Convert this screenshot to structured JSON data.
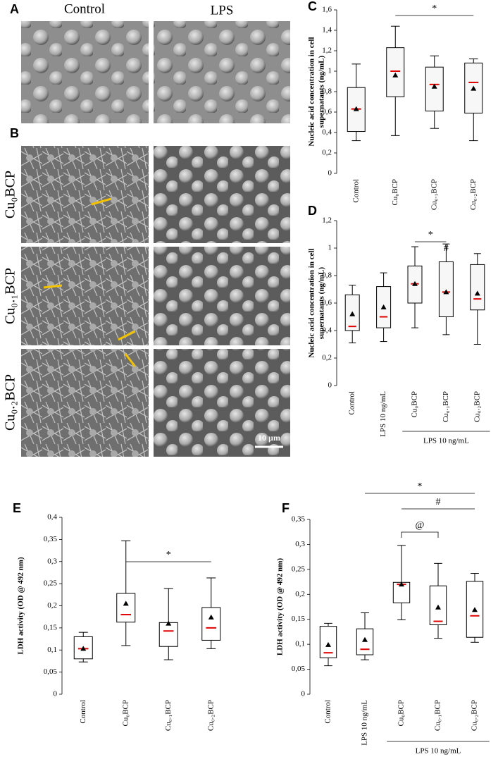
{
  "micrographs": {
    "panel_a": "A",
    "panel_b": "B",
    "columns": [
      "Control",
      "LPS"
    ],
    "rows": [
      "Cu₀BCP",
      "Cu₀.₁BCP",
      "Cu₀.₂BCP"
    ],
    "scale_bar": "10 µm"
  },
  "chart_data": [
    {
      "type": "box",
      "panel": "C",
      "y_label": [
        "Nucleic acid concentration in cell",
        "supernatants (ng/mL)"
      ],
      "categories": [
        "Control",
        "Cu₀BCP",
        "Cu₀.₁BCP",
        "Cu₀.₂BCP"
      ],
      "boxes": {
        "min": [
          0.32,
          0.37,
          0.44,
          0.32
        ],
        "q1": [
          0.41,
          0.75,
          0.61,
          0.59
        ],
        "median": [
          0.63,
          1.0,
          0.87,
          0.89
        ],
        "q3": [
          0.84,
          1.23,
          1.04,
          1.08
        ],
        "max": [
          1.07,
          1.44,
          1.15,
          1.12
        ],
        "mean": [
          0.63,
          0.96,
          0.85,
          0.83
        ]
      },
      "median_color": "#e00000",
      "mean_color": "#000000",
      "box_fill": "#f7f7f7",
      "ylim": [
        0,
        1.6
      ],
      "yticks": [
        0,
        {
          "value": 0.2,
          "label": "0,2"
        },
        {
          "value": 0.4,
          "label": "0,4"
        },
        {
          "value": 0.6,
          "label": "0,6"
        },
        {
          "value": 0.8,
          "label": "0,8"
        },
        1,
        {
          "value": 1.2,
          "label": "1,2"
        },
        {
          "value": 1.4,
          "label": "1,4"
        },
        {
          "value": 1.6,
          "label": "1,6"
        }
      ],
      "annotations": [
        {
          "text": "*",
          "from": 1,
          "to": 3
        }
      ]
    },
    {
      "type": "box",
      "panel": "D",
      "y_label": [
        "Nucleic acid concentration in cell",
        "supernatants (ng/mL)"
      ],
      "categories": [
        "Control",
        "LPS 10 ng/mL",
        "Cu₀BCP",
        "Cu₀.₁BCP",
        "Cu₀.₂BCP"
      ],
      "boxes": {
        "min": [
          0.31,
          0.32,
          0.42,
          0.37,
          0.3
        ],
        "q1": [
          0.4,
          0.42,
          0.6,
          0.5,
          0.55
        ],
        "median": [
          0.43,
          0.5,
          0.74,
          0.68,
          0.63
        ],
        "q3": [
          0.66,
          0.72,
          0.87,
          0.9,
          0.88
        ],
        "max": [
          0.73,
          0.82,
          1.01,
          1.03,
          0.96
        ],
        "mean": [
          0.52,
          0.57,
          0.74,
          0.68,
          0.67
        ]
      },
      "median_color": "#e00000",
      "mean_color": "#000000",
      "box_fill": "#f7f7f7",
      "ylim": [
        0,
        1.2
      ],
      "yticks": [
        0,
        {
          "value": 0.2,
          "label": "0,2"
        },
        {
          "value": 0.4,
          "label": "0,4"
        },
        {
          "value": 0.6,
          "label": "0,6"
        },
        {
          "value": 0.8,
          "label": "0,8"
        },
        1,
        {
          "value": 1.2,
          "label": "1,2"
        }
      ],
      "annotations": [
        {
          "text": "*",
          "from": 2,
          "to": 3
        },
        {
          "text": "#",
          "from": 3,
          "to": 3
        }
      ],
      "group_label": {
        "text": "LPS 10 ng/mL",
        "from": 2,
        "to": 4
      }
    },
    {
      "type": "box",
      "panel": "E",
      "y_label": [
        "LDH activity (OD @ 492 nm)"
      ],
      "categories": [
        "Control",
        "Cu₀BCP",
        "Cu₀.₁BCP",
        "Cu₀.₂BCP"
      ],
      "boxes": {
        "min": [
          0.073,
          0.11,
          0.078,
          0.103
        ],
        "q1": [
          0.08,
          0.163,
          0.108,
          0.122
        ],
        "median": [
          0.103,
          0.18,
          0.143,
          0.15
        ],
        "q3": [
          0.13,
          0.228,
          0.162,
          0.196
        ],
        "max": [
          0.14,
          0.347,
          0.239,
          0.263
        ],
        "mean": [
          0.103,
          0.205,
          0.16,
          0.174
        ]
      },
      "median_color": "#e00000",
      "mean_color": "#000000",
      "box_fill": "#ffffff",
      "ylim": [
        0,
        0.4
      ],
      "yticks": [
        0,
        {
          "value": 0.05,
          "label": "0,05"
        },
        {
          "value": 0.1,
          "label": "0,1"
        },
        {
          "value": 0.15,
          "label": "0,15"
        },
        {
          "value": 0.2,
          "label": "0,2"
        },
        {
          "value": 0.25,
          "label": "0,25"
        },
        {
          "value": 0.3,
          "label": "0,3"
        },
        {
          "value": 0.35,
          "label": "0,35"
        },
        {
          "value": 0.4,
          "label": "0,4"
        }
      ],
      "annotations": [
        {
          "text": "*",
          "from": 1,
          "to": 3
        }
      ]
    },
    {
      "type": "box",
      "panel": "F",
      "y_label": [
        "LDH activity (OD @ 492 nm)"
      ],
      "categories": [
        "Control",
        "LPS 10 ng/mL",
        "Cu₀BCP",
        "Cu₀.₁BCP",
        "Cu₀.₂BCP"
      ],
      "boxes": {
        "min": [
          0.057,
          0.069,
          0.149,
          0.112,
          0.104
        ],
        "q1": [
          0.073,
          0.079,
          0.183,
          0.139,
          0.114
        ],
        "median": [
          0.083,
          0.09,
          0.22,
          0.146,
          0.157
        ],
        "q3": [
          0.136,
          0.131,
          0.224,
          0.217,
          0.226
        ],
        "max": [
          0.142,
          0.163,
          0.298,
          0.262,
          0.242
        ],
        "mean": [
          0.099,
          0.109,
          0.22,
          0.174,
          0.169
        ]
      },
      "median_color": "#e00000",
      "mean_color": "#000000",
      "box_fill": "#ffffff",
      "ylim": [
        0,
        0.35
      ],
      "yticks": [
        0,
        {
          "value": 0.05,
          "label": "0,05"
        },
        {
          "value": 0.1,
          "label": "0,1"
        },
        {
          "value": 0.15,
          "label": "0,15"
        },
        {
          "value": 0.2,
          "label": "0,2"
        },
        {
          "value": 0.25,
          "label": "0,25"
        },
        {
          "value": 0.3,
          "label": "0,3"
        },
        {
          "value": 0.35,
          "label": "0,35"
        }
      ],
      "annotations": [
        {
          "text": "*",
          "from": 1,
          "to": 4
        },
        {
          "text": "#",
          "from": 2,
          "to": 4
        },
        {
          "text": "@",
          "from": 2,
          "to": 3,
          "style": "bracket"
        }
      ],
      "group_label": {
        "text": "LPS 10 ng/mL",
        "from": 2,
        "to": 4
      }
    }
  ]
}
